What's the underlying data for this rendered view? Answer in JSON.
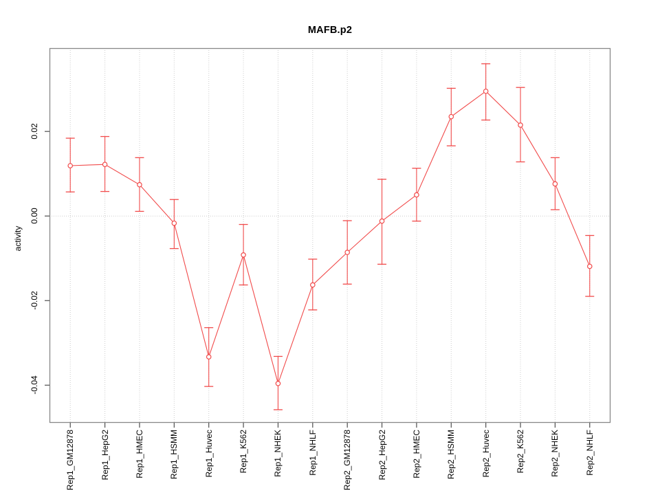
{
  "chart_data": {
    "type": "line",
    "title": "MAFB.p2",
    "xlabel": "",
    "ylabel": "activity",
    "legend": "none",
    "grid": {
      "vertical_dotted_at_each_category": true,
      "horizontal_dotted_at_zero": true
    },
    "categories": [
      "Rep1_GM12878",
      "Rep1_HepG2",
      "Rep1_HMEC",
      "Rep1_HSMM",
      "Rep1_Huvec",
      "Rep1_K562",
      "Rep1_NHEK",
      "Rep1_NHLF",
      "Rep2_GM12878",
      "Rep2_HepG2",
      "Rep2_HMEC",
      "Rep2_HSMM",
      "Rep2_Huvec",
      "Rep2_K562",
      "Rep2_NHEK",
      "Rep2_NHLF"
    ],
    "series": [
      {
        "name": "activity",
        "marker": "open-circle",
        "values": [
          0.0119,
          0.0122,
          0.0074,
          -0.0017,
          -0.0333,
          -0.0092,
          -0.0396,
          -0.0163,
          -0.0086,
          -0.0012,
          0.005,
          0.0235,
          0.0295,
          0.0215,
          0.0076,
          -0.0119
        ],
        "err_low": [
          0.0057,
          0.0058,
          0.0011,
          -0.0077,
          -0.0403,
          -0.0163,
          -0.0458,
          -0.0222,
          -0.0161,
          -0.0114,
          -0.0012,
          0.0166,
          0.0227,
          0.0128,
          0.0015,
          -0.019
        ],
        "err_high": [
          0.0184,
          0.0188,
          0.0138,
          0.0039,
          -0.0264,
          -0.002,
          -0.0332,
          -0.0102,
          -0.0011,
          0.0087,
          0.0113,
          0.0302,
          0.036,
          0.0304,
          0.0138,
          -0.0046
        ]
      }
    ],
    "ylim": [
      -0.0489,
      0.0397
    ],
    "yticks": [
      -0.04,
      -0.02,
      0,
      0.02
    ],
    "ytick_labels": [
      "-0.04",
      "-0.02",
      "0.00",
      "0.02"
    ],
    "colors": {
      "series": "#f14a4a",
      "grid": "#cccccc",
      "box": "#888888",
      "tick": "#4d4d4d",
      "text": "#000000",
      "background": "#ffffff"
    }
  }
}
